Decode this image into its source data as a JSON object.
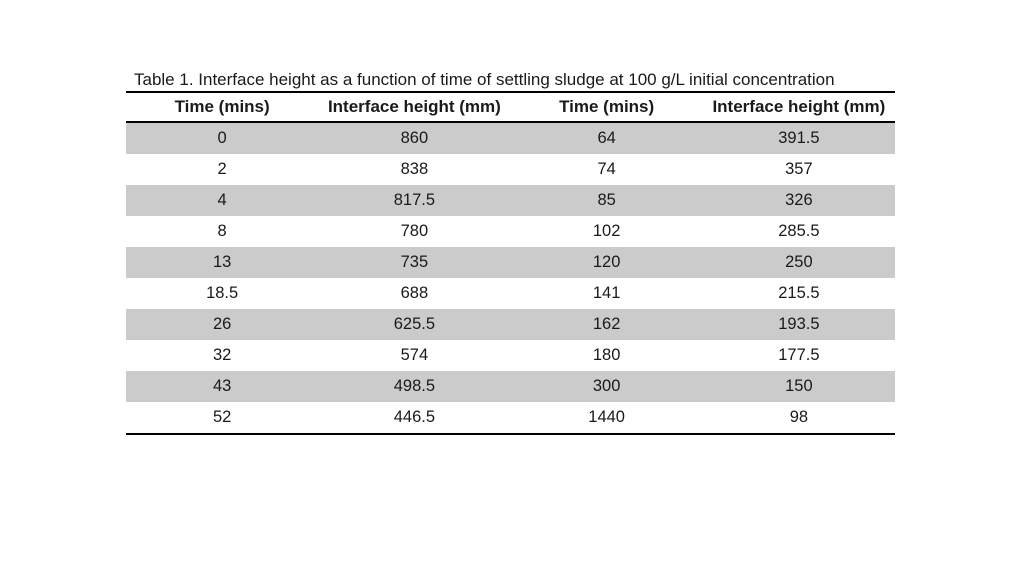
{
  "document": {
    "background_color": "#ffffff",
    "text_color": "#1a1a1a",
    "rule_color": "#000000"
  },
  "table": {
    "caption": "Table 1. Interface height as a function of time of settling sludge at 100 g/L initial concentration",
    "columns": [
      "Time (mins)",
      "Interface height (mm)",
      "Time (mins)",
      "Interface height (mm)"
    ],
    "rows": [
      [
        "0",
        "860",
        "64",
        "391.5"
      ],
      [
        "2",
        "838",
        "74",
        "357"
      ],
      [
        "4",
        "817.5",
        "85",
        "326"
      ],
      [
        "8",
        "780",
        "102",
        "285.5"
      ],
      [
        "13",
        "735",
        "120",
        "250"
      ],
      [
        "18.5",
        "688",
        "141",
        "215.5"
      ],
      [
        "26",
        "625.5",
        "162",
        "193.5"
      ],
      [
        "32",
        "574",
        "180",
        "177.5"
      ],
      [
        "43",
        "498.5",
        "300",
        "150"
      ],
      [
        "52",
        "446.5",
        "1440",
        "98"
      ]
    ],
    "stripe_color": "#cbcbcb",
    "stripe_start": "first-row"
  },
  "chart_data": {
    "type": "table",
    "title": "Table 1. Interface height as a function of time of settling sludge at 100 g/L initial concentration",
    "columns": [
      "Time (mins)",
      "Interface height (mm)"
    ],
    "x": [
      0,
      2,
      4,
      8,
      13,
      18.5,
      26,
      32,
      43,
      52,
      64,
      74,
      85,
      102,
      120,
      141,
      162,
      180,
      300,
      1440
    ],
    "series": [
      {
        "name": "Interface height (mm)",
        "values": [
          860,
          838,
          817.5,
          780,
          735,
          688,
          625.5,
          574,
          498.5,
          446.5,
          391.5,
          357,
          326,
          285.5,
          250,
          215.5,
          193.5,
          177.5,
          150,
          98
        ]
      }
    ]
  }
}
